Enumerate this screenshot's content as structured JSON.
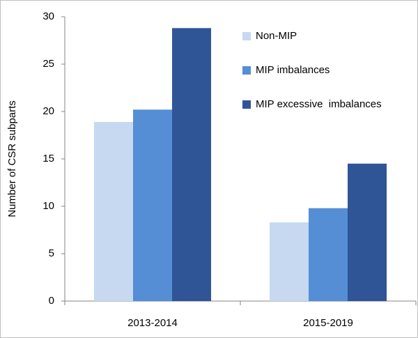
{
  "chart_data": {
    "type": "bar",
    "y_label": "Number of CSR subparts",
    "categories": [
      "2013-2014",
      "2015-2019"
    ],
    "series": [
      {
        "name": "Non-MIP",
        "color": "#c6d9f1",
        "values": [
          18.9,
          8.3
        ]
      },
      {
        "name": "MIP imbalances",
        "color": "#558ed5",
        "values": [
          20.2,
          9.8
        ]
      },
      {
        "name": "MIP excessive  imbalances",
        "color": "#2f5597",
        "values": [
          28.8,
          14.5
        ]
      }
    ],
    "ylim": [
      0,
      30
    ],
    "yticks": [
      0,
      5,
      10,
      15,
      20,
      25,
      30
    ],
    "grid": false,
    "legend": "top-right"
  }
}
